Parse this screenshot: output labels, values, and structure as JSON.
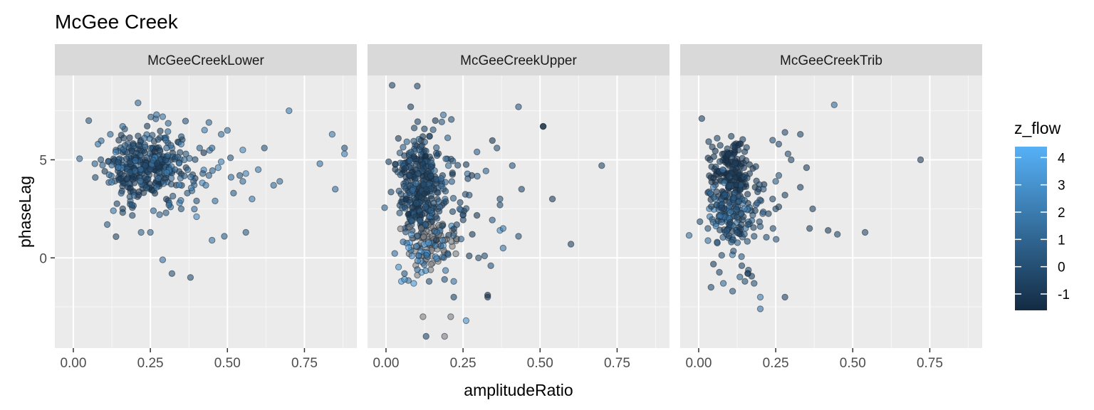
{
  "chart_data": {
    "type": "scatter",
    "title": "McGee Creek",
    "xlabel": "amplitudeRatio",
    "ylabel": "phaseLag",
    "xlim": [
      -0.06,
      0.92
    ],
    "ylim": [
      -4.6,
      9.3
    ],
    "x_ticks": [
      0,
      0.25,
      0.5,
      0.75
    ],
    "x_tick_labels": [
      "0.00",
      "0.25",
      "0.50",
      "0.75"
    ],
    "y_ticks": [
      0,
      5
    ],
    "y_tick_labels": [
      "0",
      "5"
    ],
    "grid": true,
    "facets": [
      {
        "name": "McGeeCreekLower",
        "points": [
          [
            0.05,
            7.0,
            0.4
          ],
          [
            0.21,
            7.9,
            1.2
          ],
          [
            0.27,
            7.3,
            1.5
          ],
          [
            0.29,
            7.2,
            1.6
          ],
          [
            0.7,
            7.5,
            2.0
          ],
          [
            0.84,
            6.3,
            1.9
          ],
          [
            0.88,
            5.6,
            0.2
          ],
          [
            0.88,
            5.3,
            2.2
          ],
          [
            0.8,
            4.8,
            1.8
          ],
          [
            0.85,
            3.5,
            1.4
          ],
          [
            0.62,
            5.6,
            0.3
          ],
          [
            0.6,
            4.5,
            2.0
          ],
          [
            0.55,
            5.5,
            2.6
          ],
          [
            0.56,
            4.3,
            2.4
          ],
          [
            0.55,
            3.9,
            1.3
          ],
          [
            0.58,
            3.0,
            2.0
          ],
          [
            0.65,
            3.7,
            1.2
          ],
          [
            0.67,
            3.9,
            1.4
          ],
          [
            0.56,
            1.3,
            0.6
          ],
          [
            0.49,
            1.1,
            0.8
          ],
          [
            0.45,
            0.9,
            1.8
          ],
          [
            0.29,
            -0.1,
            1.6
          ],
          [
            0.32,
            -0.8,
            0.1
          ],
          [
            0.38,
            -1.0,
            0.0
          ],
          [
            0.22,
            1.3,
            0.9
          ],
          [
            0.25,
            1.3,
            0.6
          ],
          [
            0.11,
            1.7,
            0.5
          ],
          [
            0.13,
            2.4,
            1.7
          ],
          [
            0.4,
            2.1,
            2.6
          ],
          [
            0.43,
            3.7,
            1.8
          ],
          [
            0.47,
            4.6,
            2.4
          ],
          [
            0.5,
            6.5,
            1.3
          ],
          [
            0.48,
            6.3,
            1.5
          ],
          [
            0.44,
            6.9,
            1.1
          ],
          [
            0.41,
            5.6,
            0.8
          ],
          [
            0.36,
            5.0,
            1.0
          ],
          [
            0.33,
            4.5,
            0.4
          ],
          [
            0.35,
            2.5,
            0.2
          ],
          [
            0.31,
            2.7,
            1.0
          ],
          [
            0.27,
            3.6,
            1.3
          ],
          [
            0.07,
            4.8,
            0.9
          ],
          [
            0.08,
            5.8,
            1.5
          ],
          [
            0.12,
            6.3,
            1.1
          ],
          [
            0.16,
            6.7,
            1.3
          ],
          [
            0.52,
            3.3,
            0.7
          ],
          [
            0.46,
            2.9,
            1.5
          ],
          [
            0.35,
            5.8,
            2.0
          ],
          [
            0.3,
            6.0,
            1.9
          ],
          [
            0.45,
            5.6,
            1.0
          ],
          [
            0.48,
            4.9,
            2.1
          ],
          [
            0.42,
            4.3,
            0.5
          ],
          [
            0.51,
            5.1,
            0.4
          ],
          [
            0.54,
            4.2,
            0.3
          ],
          [
            0.44,
            4.2,
            0.9
          ],
          [
            0.37,
            3.3,
            0.3
          ],
          [
            0.39,
            3.9,
            0.5
          ],
          [
            0.4,
            2.9,
            0.2
          ],
          [
            0.28,
            2.2,
            0.8
          ],
          [
            0.26,
            2.4,
            1.1
          ],
          [
            0.19,
            2.7,
            0.7
          ]
        ],
        "clusters": [
          {
            "cx": 0.23,
            "cy": 4.7,
            "sx": 0.06,
            "sy": 0.85,
            "n": 300,
            "zmin": -1.3,
            "zmax": 1.4
          },
          {
            "cx": 0.3,
            "cy": 4.6,
            "sx": 0.09,
            "sy": 1.3,
            "n": 70,
            "zmin": -1.0,
            "zmax": 2.6
          }
        ]
      },
      {
        "name": "McGeeCreekUpper",
        "points": [
          [
            0.02,
            8.8,
            -0.5
          ],
          [
            0.08,
            7.7,
            -0.6
          ],
          [
            0.16,
            7.0,
            -1.2
          ],
          [
            0.43,
            7.7,
            0.5
          ],
          [
            0.51,
            6.7,
            -1.6
          ],
          [
            0.51,
            6.7,
            -1.6
          ],
          [
            0.7,
            4.7,
            -0.3
          ],
          [
            0.54,
            3.0,
            -0.8
          ],
          [
            0.44,
            3.5,
            -0.2
          ],
          [
            0.41,
            4.7,
            0.3
          ],
          [
            0.36,
            5.6,
            0.1
          ],
          [
            0.43,
            1.1,
            0.1
          ],
          [
            0.6,
            0.7,
            -0.5
          ],
          [
            0.38,
            0.5,
            1.8
          ],
          [
            0.37,
            1.4,
            2.8
          ],
          [
            0.38,
            1.5,
            2.0
          ],
          [
            0.37,
            2.7,
            0.0
          ],
          [
            0.37,
            3.0,
            0.1
          ],
          [
            0.33,
            -1.9,
            -1.4
          ],
          [
            0.33,
            -2.0,
            -1.3
          ],
          [
            0.12,
            -3.0,
            null
          ],
          [
            0.21,
            -3.0,
            null
          ],
          [
            0.26,
            -3.2,
            3.1
          ],
          [
            0.13,
            -4.0,
            -0.4
          ],
          [
            0.19,
            -4.0,
            null
          ],
          [
            0.3,
            0.0,
            -0.2
          ],
          [
            0.32,
            0.1,
            0.0
          ],
          [
            0.34,
            -0.4,
            0.2
          ],
          [
            0.27,
            0.1,
            -0.8
          ],
          [
            0.27,
            3.2,
            0.1
          ],
          [
            0.28,
            1.2,
            -0.9
          ],
          [
            0.25,
            2.2,
            0.0
          ],
          [
            0.05,
            -1.2,
            3.6
          ],
          [
            0.06,
            -1.1,
            2.9
          ],
          [
            0.09,
            -1.3,
            3.4
          ],
          [
            0.06,
            -0.8,
            0.4
          ],
          [
            0.14,
            -1.2,
            0.1
          ],
          [
            0.19,
            -1.1,
            0.2
          ],
          [
            0.22,
            -1.2,
            1.6
          ],
          [
            0.22,
            -2.0,
            -0.5
          ]
        ],
        "clusters": [
          {
            "cx": 0.11,
            "cy": 3.7,
            "sx": 0.035,
            "sy": 1.3,
            "n": 290,
            "zmin": -1.5,
            "zmax": 0.9
          },
          {
            "cx": 0.15,
            "cy": 0.8,
            "sx": 0.05,
            "sy": 0.6,
            "n": 75,
            "zmin": null,
            "zmax": null
          },
          {
            "cx": 0.12,
            "cy": 0.3,
            "sx": 0.05,
            "sy": 0.7,
            "n": 40,
            "zmin": 1.0,
            "zmax": 4.2
          },
          {
            "cx": 0.17,
            "cy": 3.0,
            "sx": 0.06,
            "sy": 1.6,
            "n": 90,
            "zmin": -1.3,
            "zmax": 1.5
          }
        ]
      },
      {
        "name": "McGeeCreekTrib",
        "points": [
          [
            0.01,
            7.1,
            -0.5
          ],
          [
            0.44,
            7.8,
            1.2
          ],
          [
            0.72,
            5.0,
            -0.8
          ],
          [
            0.06,
            6.1,
            -0.4
          ],
          [
            0.28,
            6.4,
            -0.2
          ],
          [
            0.33,
            6.3,
            -0.3
          ],
          [
            0.24,
            6.0,
            0.1
          ],
          [
            0.26,
            5.8,
            -0.3
          ],
          [
            0.29,
            5.3,
            0.0
          ],
          [
            0.3,
            5.0,
            -0.4
          ],
          [
            0.35,
            4.6,
            -0.7
          ],
          [
            0.33,
            3.6,
            -0.6
          ],
          [
            0.28,
            3.2,
            -0.4
          ],
          [
            0.24,
            3.0,
            -0.2
          ],
          [
            0.25,
            2.5,
            -0.5
          ],
          [
            0.26,
            2.6,
            -0.8
          ],
          [
            0.37,
            2.5,
            -0.6
          ],
          [
            0.36,
            1.5,
            -0.7
          ],
          [
            0.42,
            1.4,
            -1.0
          ],
          [
            0.45,
            1.2,
            -0.4
          ],
          [
            0.54,
            1.3,
            -0.2
          ],
          [
            0.26,
            4.2,
            0.3
          ],
          [
            0.25,
            3.9,
            0.6
          ],
          [
            0.21,
            3.5,
            0.3
          ],
          [
            0.19,
            2.8,
            0.6
          ],
          [
            0.2,
            1.6,
            0.3
          ],
          [
            0.18,
            1.1,
            0.1
          ],
          [
            0.16,
            1.7,
            -0.1
          ],
          [
            0.04,
            -1.5,
            0.0
          ],
          [
            0.08,
            -1.3,
            1.2
          ],
          [
            0.11,
            -1.7,
            0.4
          ],
          [
            0.15,
            -1.2,
            0.1
          ],
          [
            0.18,
            -1.3,
            0.2
          ],
          [
            0.2,
            -2.0,
            2.0
          ],
          [
            0.2,
            -2.6,
            1.6
          ],
          [
            0.28,
            -2.0,
            -0.4
          ],
          [
            0.16,
            -0.8,
            -0.6
          ],
          [
            0.14,
            -0.4,
            -0.5
          ],
          [
            0.03,
            1.5,
            0.1
          ],
          [
            0.06,
            0.8,
            0.0
          ]
        ],
        "clusters": [
          {
            "cx": 0.11,
            "cy": 4.4,
            "sx": 0.035,
            "sy": 0.9,
            "n": 180,
            "zmin": -1.5,
            "zmax": -0.5
          },
          {
            "cx": 0.09,
            "cy": 2.3,
            "sx": 0.035,
            "sy": 0.7,
            "n": 90,
            "zmin": 0.3,
            "zmax": 2.2
          },
          {
            "cx": 0.13,
            "cy": 2.0,
            "sx": 0.045,
            "sy": 1.3,
            "n": 80,
            "zmin": -1.0,
            "zmax": 0.8
          }
        ]
      }
    ],
    "color_scale": {
      "title": "z_flow",
      "low": "#132B43",
      "high": "#56B1F7",
      "na": "#808080",
      "min": -1.6,
      "max": 4.4,
      "breaks": [
        4,
        3,
        2,
        1,
        0,
        -1
      ],
      "break_labels": [
        "4",
        "3",
        "2",
        "1",
        "0",
        "-1"
      ]
    },
    "legend_position": "right"
  }
}
